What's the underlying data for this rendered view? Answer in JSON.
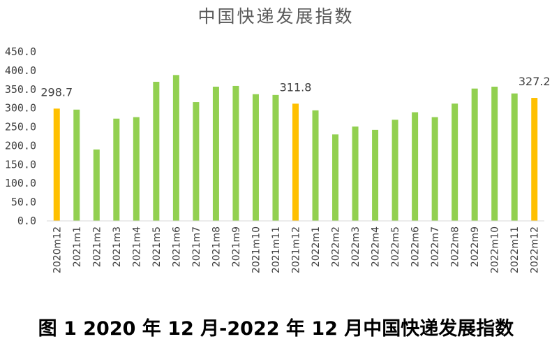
{
  "chart_data": {
    "type": "bar",
    "title": "中国快递发展指数",
    "caption": "图 1 2020 年 12 月-2022 年 12 月中国快递发展指数",
    "categories": [
      "2020m12",
      "2021m1",
      "2021m2",
      "2021m3",
      "2021m4",
      "2021m5",
      "2021m6",
      "2021m7",
      "2021m8",
      "2021m9",
      "2021m10",
      "2021m11",
      "2021m12",
      "2022m1",
      "2022m2",
      "2022m3",
      "2022m4",
      "2022m5",
      "2022m6",
      "2022m7",
      "2022m8",
      "2022m9",
      "2022m10",
      "2022m11",
      "2022m12"
    ],
    "values": [
      298.7,
      296,
      190,
      272,
      276,
      370,
      388,
      316,
      357,
      359,
      337,
      335,
      311.8,
      294,
      230,
      251,
      242,
      269,
      289,
      276,
      312,
      352,
      357,
      339,
      327.2
    ],
    "highlight_categories": [
      "2020m12",
      "2021m12",
      "2022m12"
    ],
    "data_labels": [
      {
        "category": "2020m12",
        "text": "298.7"
      },
      {
        "category": "2021m12",
        "text": "311.8"
      },
      {
        "category": "2022m12",
        "text": "327.2"
      }
    ],
    "ylim": [
      0,
      450
    ],
    "yticks": [
      "0.0",
      "50.0",
      "100.0",
      "150.0",
      "200.0",
      "250.0",
      "300.0",
      "350.0",
      "400.0",
      "450.0"
    ],
    "xlabel": "",
    "ylabel": "",
    "grid": false,
    "colors": {
      "bar": "#92d050",
      "highlight": "#ffc000",
      "axis": "#d9d9d9",
      "text": "#404040"
    }
  }
}
